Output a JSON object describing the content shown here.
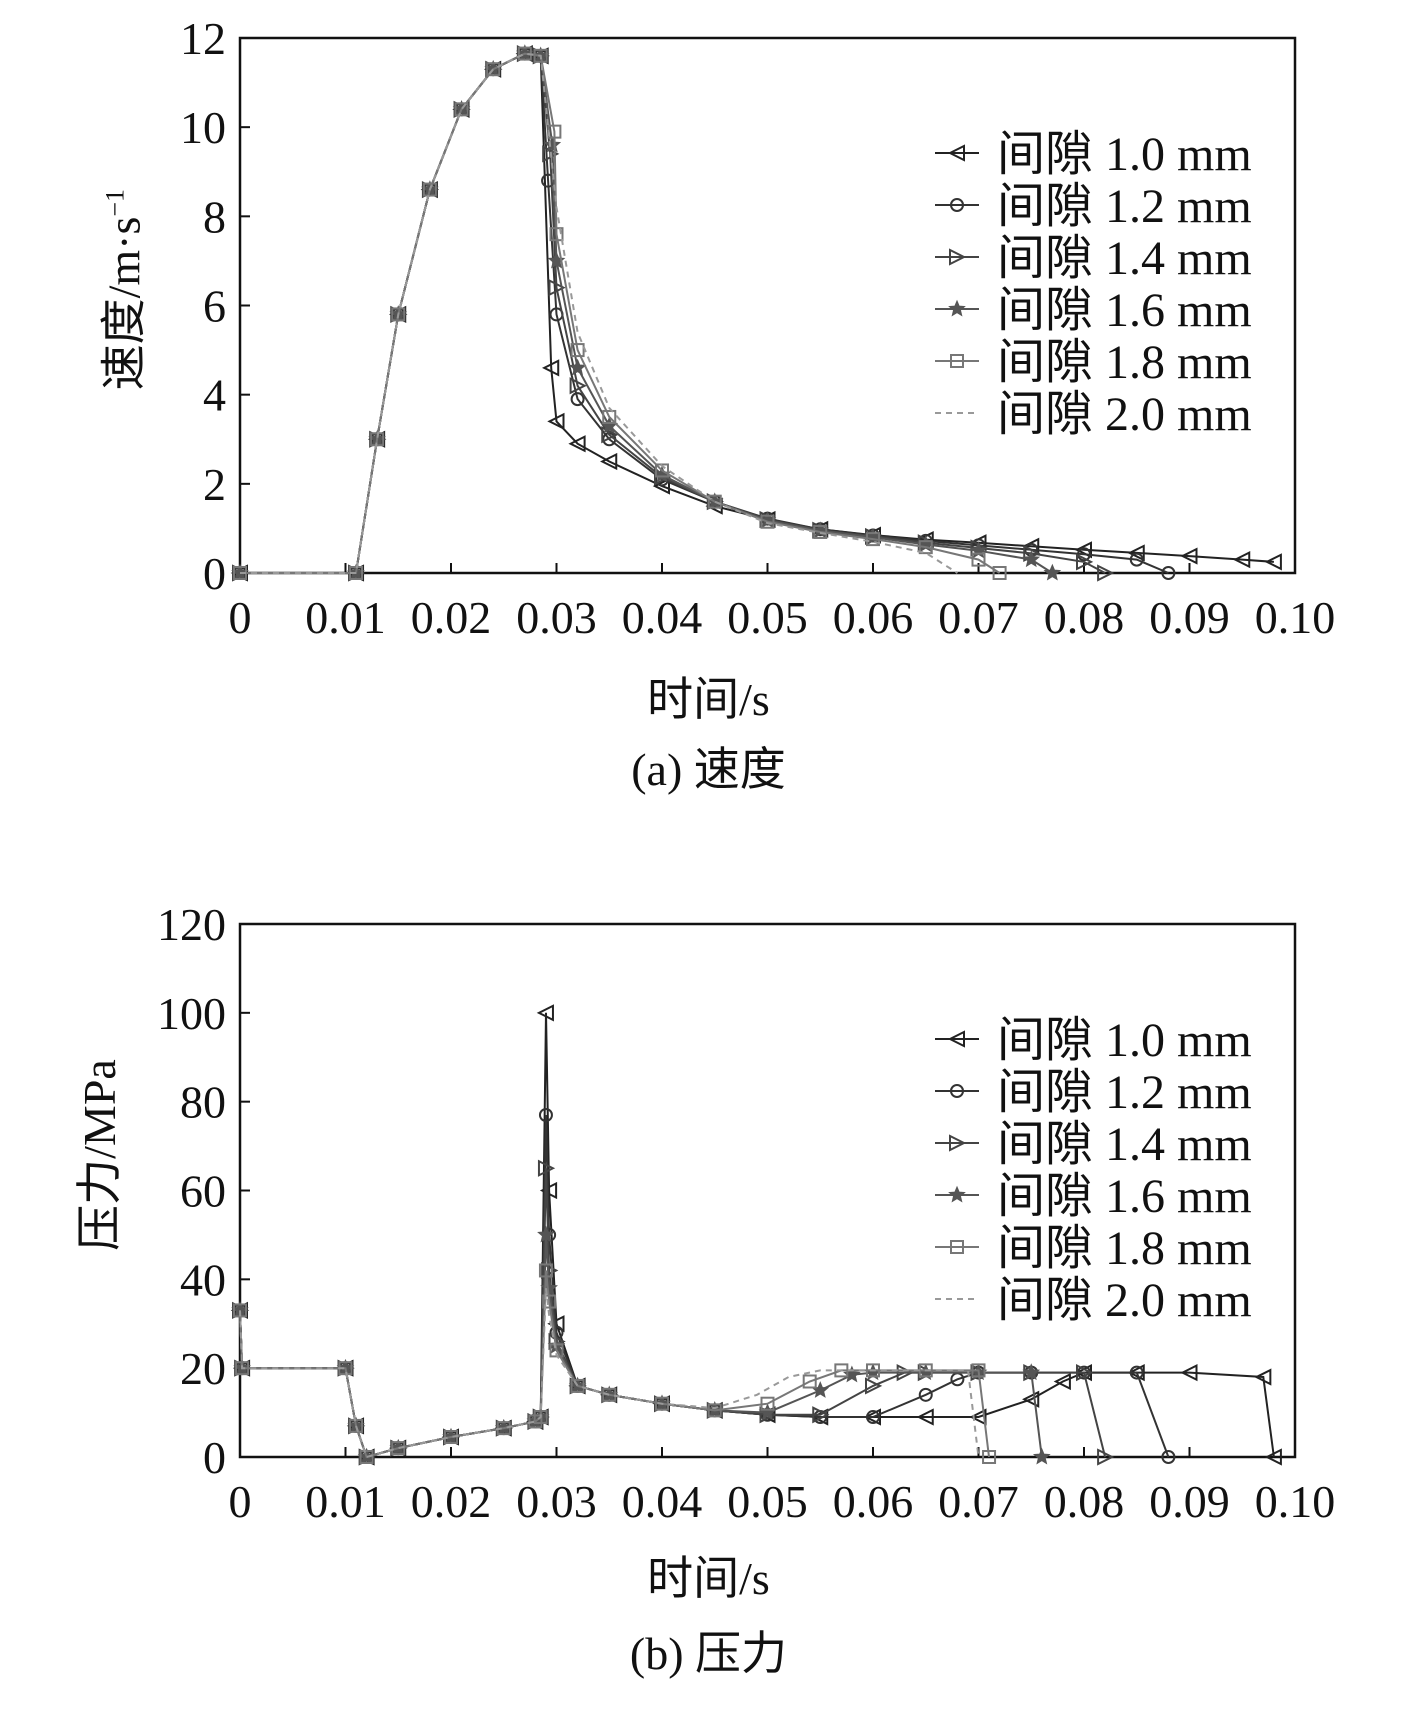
{
  "chart_data": [
    {
      "type": "line",
      "panel": "a",
      "caption": "(a) 速度",
      "xlabel": "时间/s",
      "ylabel": "速度/m·s",
      "ylabel_sup": "−1",
      "xlim": [
        0,
        0.1
      ],
      "ylim": [
        0,
        12
      ],
      "x_ticks": [
        "0",
        "0.01",
        "0.02",
        "0.03",
        "0.04",
        "0.05",
        "0.06",
        "0.07",
        "0.08",
        "0.09",
        "0.10"
      ],
      "y_ticks": [
        "0",
        "2",
        "4",
        "6",
        "8",
        "10",
        "12"
      ],
      "legend_position": "top-right",
      "series": [
        {
          "name": "间隙 1.0 mm",
          "marker": "triangle-left",
          "color": "#222222",
          "dash": "",
          "x": [
            0,
            0.011,
            0.013,
            0.015,
            0.018,
            0.021,
            0.024,
            0.027,
            0.0285,
            0.0295,
            0.03,
            0.032,
            0.035,
            0.04,
            0.045,
            0.05,
            0.055,
            0.06,
            0.065,
            0.07,
            0.075,
            0.08,
            0.085,
            0.09,
            0.095,
            0.098
          ],
          "y": [
            0,
            0,
            3.0,
            5.8,
            8.6,
            10.4,
            11.3,
            11.65,
            11.6,
            4.6,
            3.4,
            2.9,
            2.5,
            1.95,
            1.5,
            1.2,
            0.98,
            0.85,
            0.75,
            0.68,
            0.6,
            0.52,
            0.45,
            0.38,
            0.3,
            0.25
          ]
        },
        {
          "name": "间隙 1.2 mm",
          "marker": "circle",
          "color": "#333333",
          "dash": "",
          "x": [
            0,
            0.011,
            0.013,
            0.015,
            0.018,
            0.021,
            0.024,
            0.027,
            0.0285,
            0.0292,
            0.03,
            0.032,
            0.035,
            0.04,
            0.045,
            0.05,
            0.055,
            0.06,
            0.065,
            0.07,
            0.075,
            0.08,
            0.085,
            0.088
          ],
          "y": [
            0,
            0,
            3.0,
            5.8,
            8.6,
            10.4,
            11.3,
            11.65,
            11.6,
            8.8,
            5.8,
            3.9,
            3.0,
            2.1,
            1.6,
            1.22,
            0.98,
            0.84,
            0.72,
            0.62,
            0.52,
            0.42,
            0.3,
            0
          ]
        },
        {
          "name": "间隙 1.4 mm",
          "marker": "triangle-right",
          "color": "#444444",
          "dash": "",
          "x": [
            0,
            0.011,
            0.013,
            0.015,
            0.018,
            0.021,
            0.024,
            0.027,
            0.0285,
            0.0294,
            0.03,
            0.032,
            0.035,
            0.04,
            0.045,
            0.05,
            0.055,
            0.06,
            0.065,
            0.07,
            0.075,
            0.08,
            0.082
          ],
          "y": [
            0,
            0,
            3.0,
            5.8,
            8.6,
            10.4,
            11.3,
            11.65,
            11.6,
            9.4,
            6.4,
            4.2,
            3.1,
            2.15,
            1.6,
            1.2,
            0.96,
            0.82,
            0.68,
            0.56,
            0.44,
            0.25,
            0
          ]
        },
        {
          "name": "间隙 1.6 mm",
          "marker": "star",
          "color": "#555555",
          "dash": "",
          "x": [
            0,
            0.011,
            0.013,
            0.015,
            0.018,
            0.021,
            0.024,
            0.027,
            0.0285,
            0.0296,
            0.03,
            0.032,
            0.035,
            0.04,
            0.045,
            0.05,
            0.055,
            0.06,
            0.065,
            0.07,
            0.075,
            0.077
          ],
          "y": [
            0,
            0,
            3.0,
            5.8,
            8.6,
            10.4,
            11.3,
            11.65,
            11.6,
            9.6,
            7.0,
            4.6,
            3.3,
            2.2,
            1.6,
            1.18,
            0.95,
            0.8,
            0.64,
            0.5,
            0.3,
            0
          ]
        },
        {
          "name": "间隙 1.8 mm",
          "marker": "square",
          "color": "#777777",
          "dash": "",
          "x": [
            0,
            0.011,
            0.013,
            0.015,
            0.018,
            0.021,
            0.024,
            0.027,
            0.0285,
            0.0298,
            0.03,
            0.032,
            0.035,
            0.04,
            0.045,
            0.05,
            0.055,
            0.06,
            0.065,
            0.07,
            0.072
          ],
          "y": [
            0,
            0,
            3.0,
            5.8,
            8.6,
            10.4,
            11.3,
            11.65,
            11.6,
            9.9,
            7.6,
            5.0,
            3.5,
            2.3,
            1.6,
            1.15,
            0.92,
            0.76,
            0.58,
            0.3,
            0
          ]
        },
        {
          "name": "间隙 2.0 mm",
          "marker": "none",
          "color": "#999999",
          "dash": "6,5",
          "x": [
            0,
            0.011,
            0.013,
            0.015,
            0.018,
            0.021,
            0.024,
            0.027,
            0.0285,
            0.03,
            0.032,
            0.035,
            0.04,
            0.045,
            0.05,
            0.055,
            0.06,
            0.065,
            0.068
          ],
          "y": [
            0,
            0,
            3.0,
            5.8,
            8.6,
            10.4,
            11.3,
            11.65,
            11.6,
            8.2,
            5.4,
            3.7,
            2.4,
            1.6,
            1.12,
            0.9,
            0.7,
            0.45,
            0
          ]
        }
      ]
    },
    {
      "type": "line",
      "panel": "b",
      "caption": "(b) 压力",
      "xlabel": "时间/s",
      "ylabel": "压力/MPa",
      "ylabel_sup": "",
      "xlim": [
        0,
        0.1
      ],
      "ylim": [
        0,
        120
      ],
      "x_ticks": [
        "0",
        "0.01",
        "0.02",
        "0.03",
        "0.04",
        "0.05",
        "0.06",
        "0.07",
        "0.08",
        "0.09",
        "0.10"
      ],
      "y_ticks": [
        "0",
        "20",
        "40",
        "60",
        "80",
        "100",
        "120"
      ],
      "legend_position": "top-right",
      "series": [
        {
          "name": "间隙 1.0 mm",
          "marker": "triangle-left",
          "color": "#222222",
          "dash": "",
          "x": [
            0,
            0.0002,
            0.01,
            0.011,
            0.012,
            0.015,
            0.02,
            0.025,
            0.028,
            0.0285,
            0.029,
            0.0293,
            0.03,
            0.032,
            0.035,
            0.04,
            0.045,
            0.05,
            0.055,
            0.06,
            0.065,
            0.07,
            0.075,
            0.078,
            0.08,
            0.085,
            0.09,
            0.097,
            0.098
          ],
          "y": [
            33,
            20,
            20,
            7,
            0,
            2,
            4.5,
            6.5,
            8,
            9,
            100,
            60,
            30,
            16,
            14,
            12,
            10.5,
            9.5,
            9,
            9,
            9,
            9,
            13,
            17,
            19,
            19,
            19,
            18,
            0
          ]
        },
        {
          "name": "间隙 1.2 mm",
          "marker": "circle",
          "color": "#333333",
          "dash": "",
          "x": [
            0,
            0.0002,
            0.01,
            0.011,
            0.012,
            0.015,
            0.02,
            0.025,
            0.028,
            0.0285,
            0.029,
            0.0293,
            0.03,
            0.032,
            0.035,
            0.04,
            0.045,
            0.05,
            0.055,
            0.06,
            0.065,
            0.068,
            0.07,
            0.075,
            0.08,
            0.085,
            0.088
          ],
          "y": [
            33,
            20,
            20,
            7,
            0,
            2,
            4.5,
            6.5,
            8,
            9,
            77,
            50,
            28,
            16,
            14,
            12,
            10.5,
            9.5,
            9,
            9,
            14,
            17.5,
            19,
            19,
            19,
            19,
            0
          ]
        },
        {
          "name": "间隙 1.4 mm",
          "marker": "triangle-right",
          "color": "#444444",
          "dash": "",
          "x": [
            0,
            0.0002,
            0.01,
            0.011,
            0.012,
            0.015,
            0.02,
            0.025,
            0.028,
            0.0285,
            0.029,
            0.0293,
            0.03,
            0.032,
            0.035,
            0.04,
            0.045,
            0.05,
            0.055,
            0.06,
            0.063,
            0.065,
            0.07,
            0.075,
            0.08,
            0.082
          ],
          "y": [
            33,
            20,
            20,
            7,
            0,
            2,
            4.5,
            6.5,
            8,
            9,
            65,
            42,
            26,
            16,
            14,
            12,
            10.5,
            9.5,
            9.5,
            16,
            19,
            19,
            19,
            19,
            19,
            0
          ]
        },
        {
          "name": "间隙 1.6 mm",
          "marker": "star",
          "color": "#555555",
          "dash": "",
          "x": [
            0,
            0.0002,
            0.01,
            0.011,
            0.012,
            0.015,
            0.02,
            0.025,
            0.028,
            0.0285,
            0.029,
            0.0293,
            0.03,
            0.032,
            0.035,
            0.04,
            0.045,
            0.05,
            0.055,
            0.058,
            0.06,
            0.065,
            0.07,
            0.075,
            0.076
          ],
          "y": [
            33,
            20,
            20,
            7,
            0,
            2,
            4.5,
            6.5,
            8,
            9,
            50,
            38,
            25,
            16,
            14,
            12,
            10.5,
            10,
            15,
            18.5,
            19,
            19,
            19,
            19,
            0
          ]
        },
        {
          "name": "间隙 1.8 mm",
          "marker": "square",
          "color": "#777777",
          "dash": "",
          "x": [
            0,
            0.0002,
            0.01,
            0.011,
            0.012,
            0.015,
            0.02,
            0.025,
            0.028,
            0.0285,
            0.029,
            0.0293,
            0.03,
            0.032,
            0.035,
            0.04,
            0.045,
            0.05,
            0.054,
            0.057,
            0.06,
            0.065,
            0.07,
            0.071
          ],
          "y": [
            33,
            20,
            20,
            7,
            0,
            2,
            4.5,
            6.5,
            8,
            9,
            42,
            35,
            24,
            16,
            14,
            12,
            10.5,
            12,
            17,
            19.5,
            19.5,
            19.5,
            19.5,
            0
          ]
        },
        {
          "name": "间隙 2.0 mm",
          "marker": "none",
          "color": "#999999",
          "dash": "6,5",
          "x": [
            0,
            0.0002,
            0.01,
            0.011,
            0.012,
            0.015,
            0.02,
            0.025,
            0.028,
            0.0285,
            0.029,
            0.0293,
            0.03,
            0.032,
            0.035,
            0.04,
            0.045,
            0.049,
            0.052,
            0.055,
            0.06,
            0.065,
            0.069,
            0.07
          ],
          "y": [
            33,
            20,
            20,
            7,
            0,
            2,
            4.5,
            6.5,
            8,
            9,
            38,
            32,
            23,
            16,
            14,
            12,
            11,
            14,
            18,
            19.5,
            19.5,
            19.5,
            19.5,
            0
          ]
        }
      ]
    }
  ]
}
